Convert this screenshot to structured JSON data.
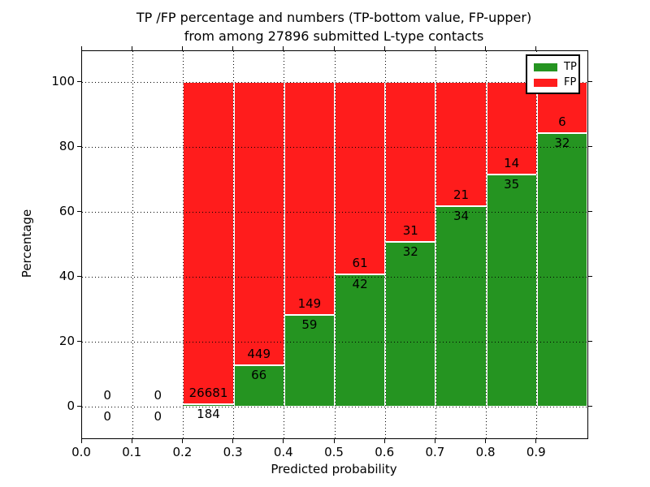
{
  "chart_data": {
    "type": "bar",
    "stacked": true,
    "title": "TP /FP percentage and numbers (TP-bottom value, FP-upper)\nfrom among 27896 submitted L-type contacts",
    "title_line1": "TP /FP percentage and numbers (TP-bottom value, FP-upper)",
    "title_line2": "from among 27896 submitted L-type contacts",
    "xlabel": "Predicted probability",
    "ylabel": "Percentage",
    "xlim": [
      0.0,
      1.0
    ],
    "ylim": [
      -9.75,
      109.5
    ],
    "x_ticks": [
      0.0,
      0.1,
      0.2,
      0.3,
      0.4,
      0.5,
      0.6,
      0.7,
      0.8,
      0.9
    ],
    "x_tick_labels": [
      "0.0",
      "0.1",
      "0.2",
      "0.3",
      "0.4",
      "0.5",
      "0.6",
      "0.7",
      "0.8",
      "0.9"
    ],
    "y_ticks": [
      0,
      20,
      40,
      60,
      80,
      100
    ],
    "y_tick_labels": [
      "0",
      "20",
      "40",
      "60",
      "80",
      "100"
    ],
    "grid": "dotted",
    "legend_position": "upper right",
    "bar_edge_color": "#ffffff",
    "series": [
      {
        "name": "TP",
        "color": "#259421"
      },
      {
        "name": "FP",
        "color": "#ff1c1c"
      }
    ],
    "bins": [
      {
        "start": 0.0,
        "end": 0.1,
        "tp": 0,
        "fp": 0
      },
      {
        "start": 0.1,
        "end": 0.2,
        "tp": 0,
        "fp": 0
      },
      {
        "start": 0.2,
        "end": 0.3,
        "tp": 184,
        "fp": 26681
      },
      {
        "start": 0.3,
        "end": 0.4,
        "tp": 66,
        "fp": 449
      },
      {
        "start": 0.4,
        "end": 0.5,
        "tp": 59,
        "fp": 149
      },
      {
        "start": 0.5,
        "end": 0.6,
        "tp": 42,
        "fp": 61
      },
      {
        "start": 0.6,
        "end": 0.7,
        "tp": 32,
        "fp": 31
      },
      {
        "start": 0.7,
        "end": 0.8,
        "tp": 34,
        "fp": 21
      },
      {
        "start": 0.8,
        "end": 0.9,
        "tp": 35,
        "fp": 14
      },
      {
        "start": 0.9,
        "end": 1.0,
        "tp": 32,
        "fp": 6
      }
    ]
  }
}
